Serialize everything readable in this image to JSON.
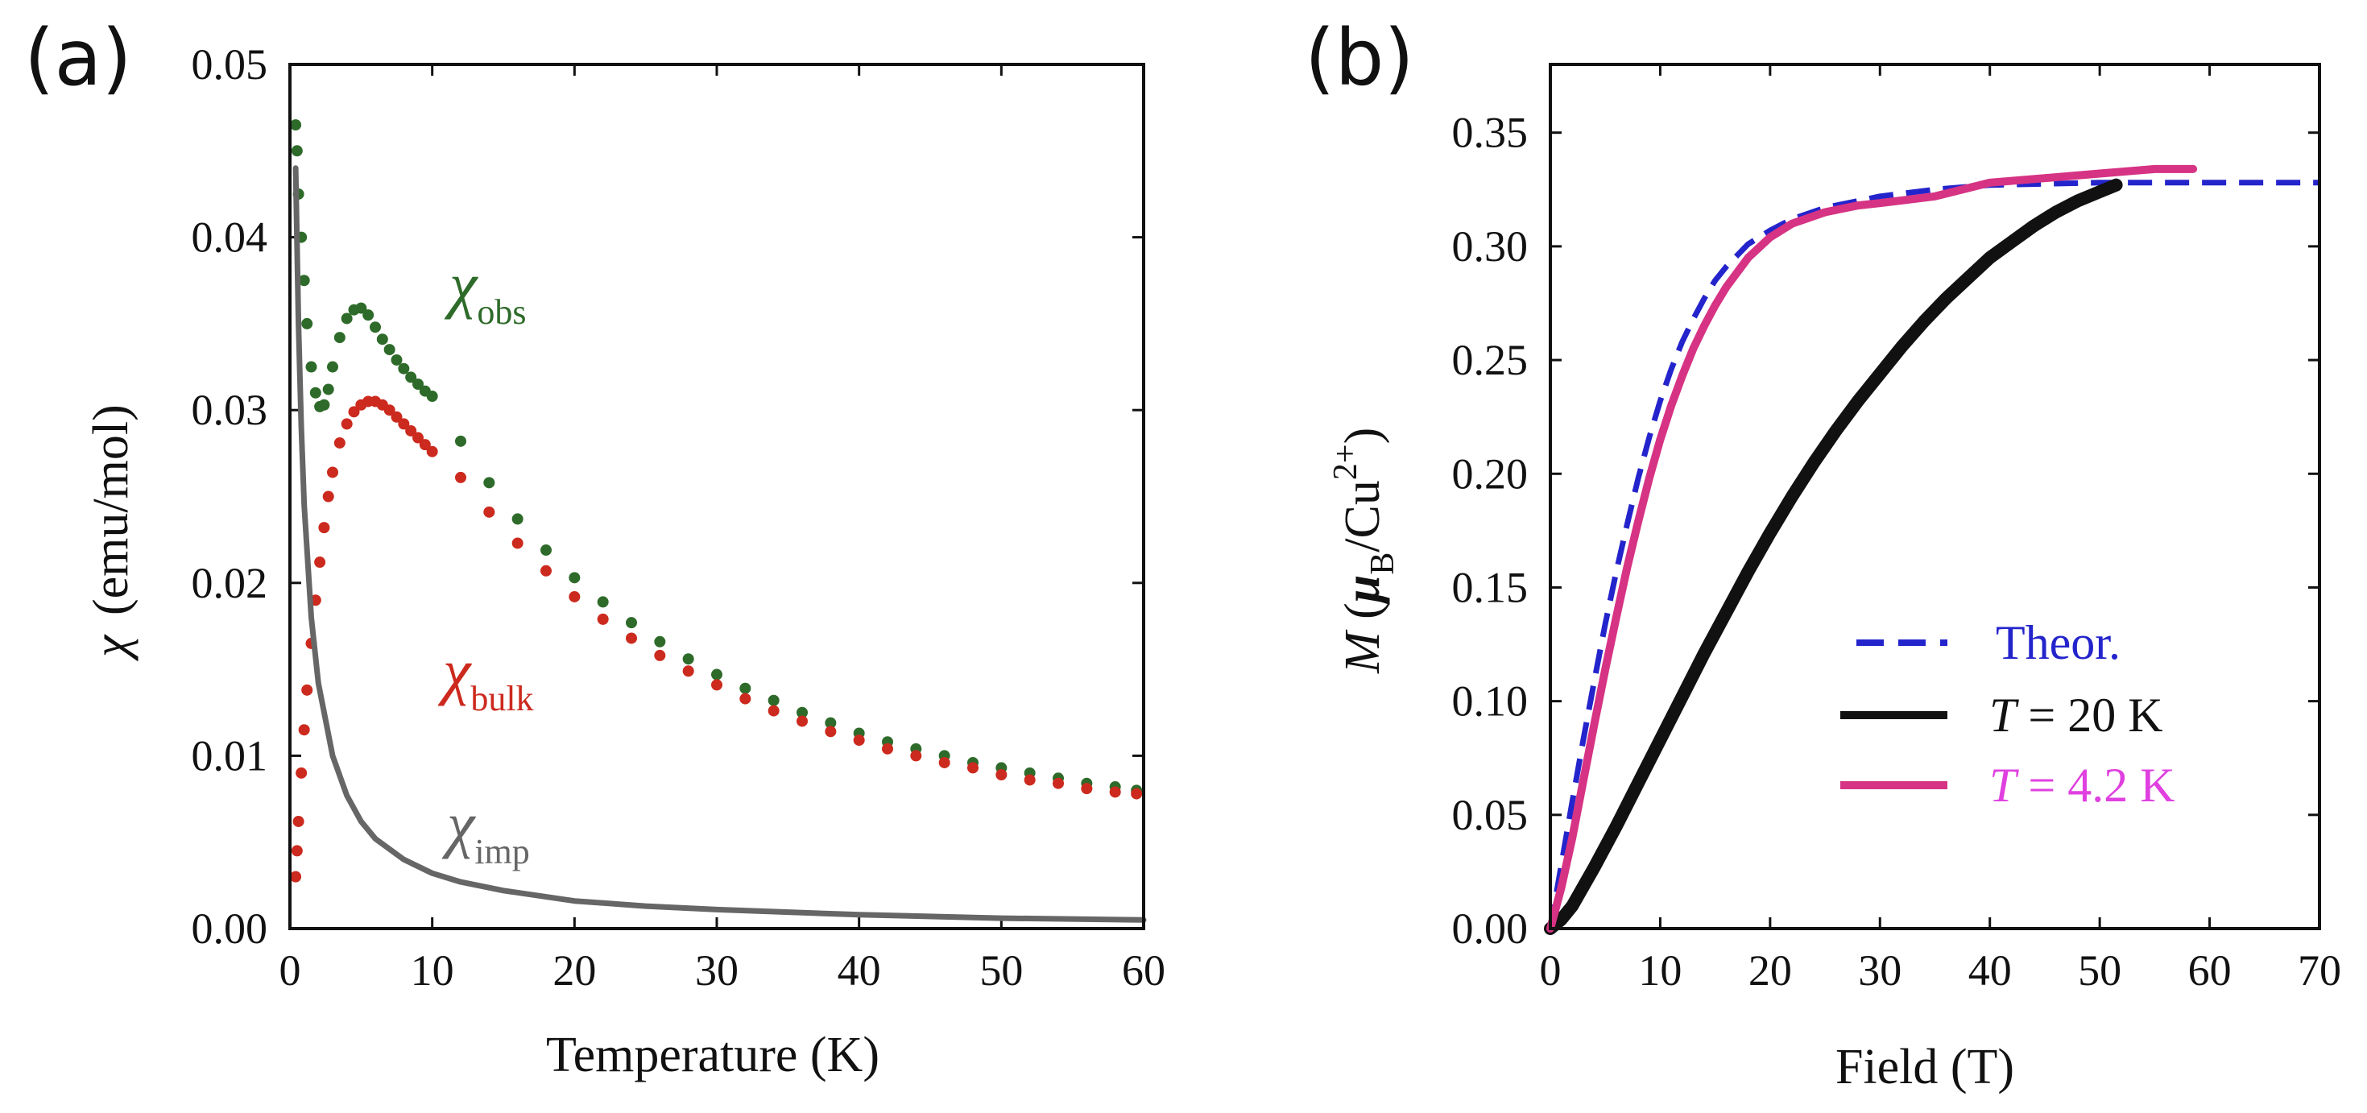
{
  "chart_data": [
    {
      "panel_label": "(a)",
      "type": "scatter",
      "xlabel": "Temperature (K)",
      "ylabel": "(emu/mol)",
      "ylabel_symbol": "χ",
      "xlim": [
        0,
        60
      ],
      "ylim": [
        0,
        0.05
      ],
      "xticks": [
        "0",
        "10",
        "20",
        "30",
        "40",
        "50",
        "60"
      ],
      "yticks": [
        "0.00",
        "0.01",
        "0.02",
        "0.03",
        "0.04",
        "0.05"
      ],
      "series": [
        {
          "name": "χobs",
          "symbol": "χ",
          "subscript": "obs",
          "color": "#2e6b2a",
          "style": "dots",
          "x": [
            0.4,
            0.5,
            0.6,
            0.8,
            1.0,
            1.2,
            1.5,
            1.8,
            2.1,
            2.4,
            2.7,
            3.0,
            3.5,
            4.0,
            4.5,
            5.0,
            5.5,
            6.0,
            6.5,
            7.0,
            7.5,
            8.0,
            8.5,
            9.0,
            9.5,
            10.0,
            12,
            14,
            16,
            18,
            20,
            22,
            24,
            26,
            28,
            30,
            32,
            34,
            36,
            38,
            40,
            42,
            44,
            46,
            48,
            50,
            52,
            54,
            56,
            58,
            59.5
          ],
          "y": [
            0.0465,
            0.045,
            0.0425,
            0.04,
            0.0375,
            0.035,
            0.0325,
            0.031,
            0.0302,
            0.0303,
            0.0312,
            0.0325,
            0.0342,
            0.0353,
            0.0358,
            0.0359,
            0.0355,
            0.0348,
            0.0341,
            0.0335,
            0.0329,
            0.0324,
            0.0319,
            0.0315,
            0.0311,
            0.0308,
            0.0282,
            0.0258,
            0.0237,
            0.0219,
            0.0203,
            0.0189,
            0.0177,
            0.0166,
            0.0156,
            0.0147,
            0.0139,
            0.0132,
            0.0125,
            0.0119,
            0.0113,
            0.0108,
            0.0104,
            0.01,
            0.0096,
            0.0093,
            0.009,
            0.0087,
            0.0084,
            0.0082,
            0.008
          ]
        },
        {
          "name": "χbulk",
          "symbol": "χ",
          "subscript": "bulk",
          "color": "#cc2a1e",
          "style": "dots",
          "x": [
            0.4,
            0.5,
            0.6,
            0.8,
            1.0,
            1.2,
            1.5,
            1.8,
            2.1,
            2.4,
            2.7,
            3.0,
            3.5,
            4.0,
            4.5,
            5.0,
            5.5,
            6.0,
            6.5,
            7.0,
            7.5,
            8.0,
            8.5,
            9.0,
            9.5,
            10.0,
            12,
            14,
            16,
            18,
            20,
            22,
            24,
            26,
            28,
            30,
            32,
            34,
            36,
            38,
            40,
            42,
            44,
            46,
            48,
            50,
            52,
            54,
            56,
            58,
            59.5
          ],
          "y": [
            0.003,
            0.0045,
            0.0062,
            0.009,
            0.0115,
            0.0138,
            0.0165,
            0.019,
            0.0212,
            0.0232,
            0.025,
            0.0264,
            0.0281,
            0.0292,
            0.0299,
            0.0303,
            0.0305,
            0.0305,
            0.0303,
            0.03,
            0.0296,
            0.0292,
            0.0288,
            0.0284,
            0.028,
            0.0276,
            0.0261,
            0.0241,
            0.0223,
            0.0207,
            0.0192,
            0.0179,
            0.0168,
            0.0158,
            0.0149,
            0.0141,
            0.0133,
            0.0126,
            0.012,
            0.0114,
            0.0109,
            0.0104,
            0.01,
            0.0096,
            0.0093,
            0.0089,
            0.0086,
            0.0084,
            0.0081,
            0.0079,
            0.0078
          ]
        },
        {
          "name": "χimp",
          "symbol": "χ",
          "subscript": "imp",
          "color": "#666666",
          "style": "line",
          "x": [
            0.4,
            0.6,
            0.8,
            1.0,
            1.5,
            2,
            3,
            4,
            5,
            6,
            8,
            10,
            12,
            15,
            20,
            25,
            30,
            40,
            50,
            60
          ],
          "y": [
            0.044,
            0.035,
            0.029,
            0.0245,
            0.018,
            0.0142,
            0.01,
            0.0077,
            0.0062,
            0.0052,
            0.004,
            0.0032,
            0.0027,
            0.0022,
            0.0016,
            0.0013,
            0.0011,
            0.0008,
            0.0006,
            0.0005
          ]
        }
      ]
    },
    {
      "panel_label": "(b)",
      "type": "line",
      "xlabel": "Field (T)",
      "ylabel": "M (μB/Cu2+)",
      "ylabel_parts": {
        "M": "M",
        "mu": "μ",
        "B": "B",
        "cu": "/Cu",
        "charge": "2+"
      },
      "xlim": [
        0,
        70
      ],
      "ylim": [
        0,
        0.38
      ],
      "xticks": [
        "0",
        "10",
        "20",
        "30",
        "40",
        "50",
        "60",
        "70"
      ],
      "yticks": [
        "0.00",
        "0.05",
        "0.10",
        "0.15",
        "0.20",
        "0.25",
        "0.30",
        "0.35"
      ],
      "series": [
        {
          "name": "Theor.",
          "color": "#2424cc",
          "style": "dashed",
          "x": [
            0,
            1,
            2,
            3,
            4,
            5,
            6,
            7,
            8,
            9,
            10,
            11,
            12,
            13,
            14,
            15,
            16,
            18,
            20,
            22,
            25,
            30,
            35,
            40,
            50,
            60,
            70
          ],
          "y": [
            0,
            0.028,
            0.056,
            0.083,
            0.109,
            0.134,
            0.157,
            0.178,
            0.198,
            0.216,
            0.232,
            0.246,
            0.258,
            0.268,
            0.277,
            0.285,
            0.291,
            0.301,
            0.307,
            0.312,
            0.317,
            0.322,
            0.325,
            0.327,
            0.328,
            0.328,
            0.328
          ]
        },
        {
          "name": "T = 20 K",
          "legend_italic": "T",
          "legend_rest": " = 20 K",
          "color": "#111111",
          "style": "thick",
          "x": [
            0,
            1,
            2,
            4,
            6,
            8,
            10,
            12,
            14,
            16,
            18,
            20,
            22,
            24,
            26,
            28,
            30,
            32,
            34,
            36,
            38,
            40,
            42,
            44,
            46,
            48,
            50,
            51.5
          ],
          "y": [
            0,
            0.004,
            0.01,
            0.027,
            0.045,
            0.064,
            0.083,
            0.102,
            0.121,
            0.139,
            0.157,
            0.174,
            0.19,
            0.205,
            0.219,
            0.232,
            0.244,
            0.256,
            0.267,
            0.277,
            0.286,
            0.295,
            0.302,
            0.309,
            0.315,
            0.32,
            0.324,
            0.327
          ]
        },
        {
          "name": "T = 4.2 K",
          "legend_italic": "T",
          "legend_rest": " = 4.2 K",
          "color": "#d63384",
          "text_color": "#e040e0",
          "style": "solid",
          "x": [
            0,
            1,
            2,
            3,
            4,
            5,
            6,
            7,
            8,
            9,
            10,
            11,
            12,
            13,
            14,
            15,
            16,
            18,
            20,
            22,
            25,
            28,
            30,
            35,
            40,
            45,
            50,
            55,
            58.5
          ],
          "y": [
            0,
            0.018,
            0.04,
            0.065,
            0.09,
            0.114,
            0.137,
            0.159,
            0.179,
            0.198,
            0.215,
            0.23,
            0.243,
            0.255,
            0.265,
            0.274,
            0.282,
            0.295,
            0.304,
            0.31,
            0.315,
            0.318,
            0.319,
            0.322,
            0.328,
            0.33,
            0.332,
            0.334,
            0.334
          ]
        }
      ],
      "legend_position": "center-right"
    }
  ]
}
